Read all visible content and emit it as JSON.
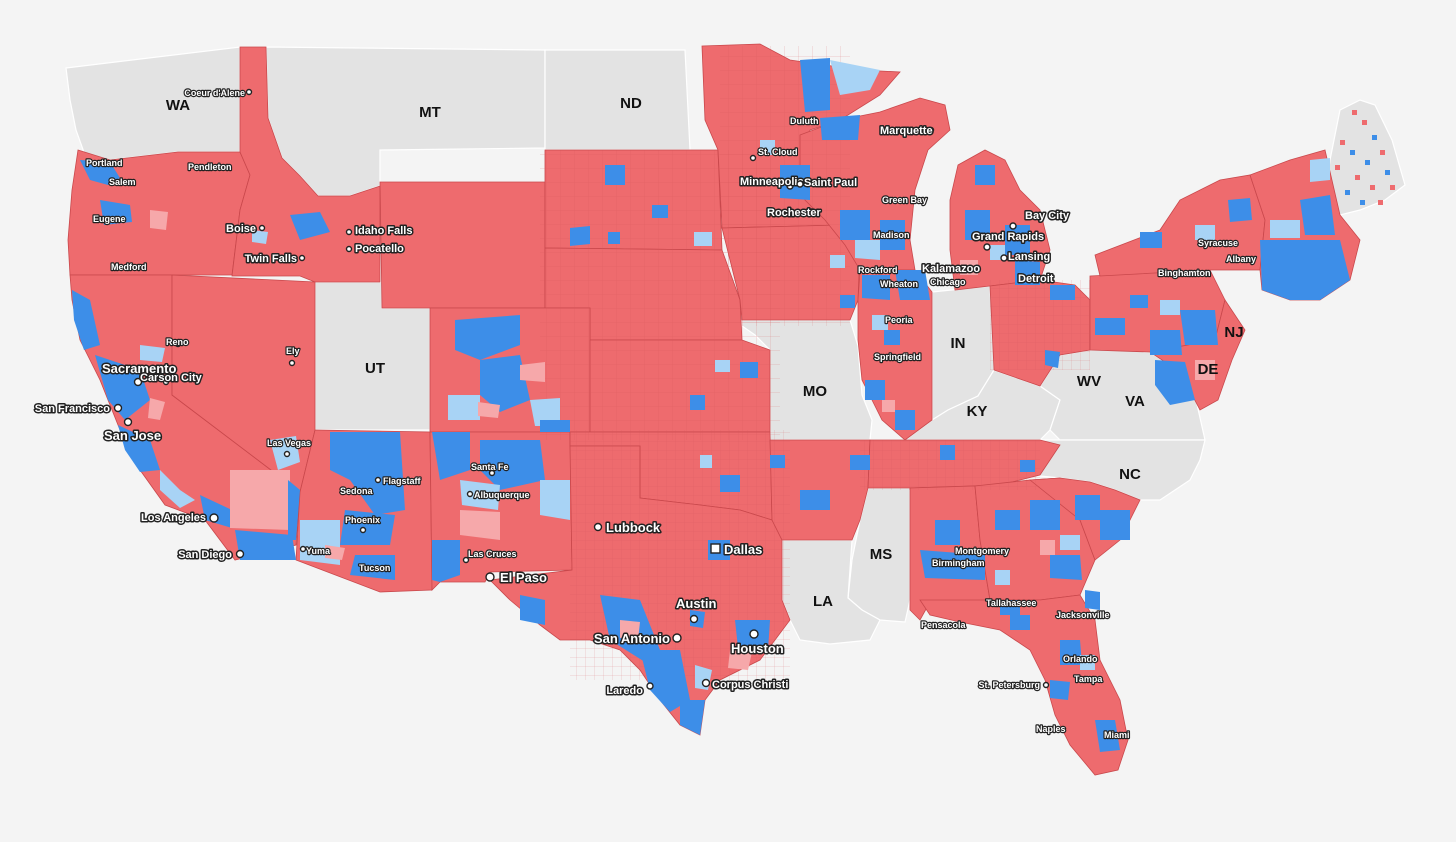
{
  "colors": {
    "strong_red": "#ee6b6e",
    "light_red": "#f6a8aa",
    "strong_blue": "#3d8ee8",
    "light_blue": "#a8d3f5",
    "no_data": "#e3e3e3",
    "background": "#f4f4f4"
  },
  "state_labels": {
    "WA": "WA",
    "MT": "MT",
    "ND": "ND",
    "UT": "UT",
    "MO": "MO",
    "IN": "IN",
    "KY": "KY",
    "WV": "WV",
    "VA": "VA",
    "NC": "NC",
    "MS": "MS",
    "LA": "LA",
    "NJ": "NJ",
    "DE": "DE"
  },
  "cities": {
    "coeur_d_alene": "Coeur d'Alene",
    "boise": "Boise",
    "twin_falls": "Twin Falls",
    "idaho_falls": "Idaho Falls",
    "pocatello": "Pocatello",
    "reno": "Reno",
    "sacramento": "Sacramento",
    "carson_city": "Carson City",
    "ely": "Ely",
    "san_francisco": "San Francisco",
    "san_jose": "San Jose",
    "las_vegas": "Las Vegas",
    "los_angeles": "Los Angeles",
    "san_diego": "San Diego",
    "flagstaff": "Flagstaff",
    "sedona": "Sedona",
    "phoenix": "Phoenix",
    "tucson": "Tucson",
    "yuma": "Yuma",
    "santa_fe": "Santa Fe",
    "albuquerque": "Albuquerque",
    "las_cruces": "Las Cruces",
    "el_paso": "El Paso",
    "lubbock": "Lubbock",
    "dallas": "Dallas",
    "austin": "Austin",
    "san_antonio": "San Antonio",
    "houston": "Houston",
    "laredo": "Laredo",
    "corpus_christi": "Corpus Christi",
    "duluth": "Duluth",
    "st_cloud": "St. Cloud",
    "minneapolis": "Minneapolis",
    "saint_paul": "Saint Paul",
    "rochester": "Rochester",
    "marquette": "Marquette",
    "green_bay": "Green Bay",
    "madison": "Madison",
    "rockford": "Rockford",
    "wheaton": "Wheaton",
    "chicago": "Chicago",
    "peoria": "Peoria",
    "springfield": "Springfield",
    "grand_rapids": "Grand Rapids",
    "bay_city": "Bay City",
    "lansing": "Lansing",
    "kalamazoo": "Kalamazoo",
    "detroit": "Detroit",
    "birmingham": "Birmingham",
    "montgomery": "Montgomery",
    "tallahassee": "Tallahassee",
    "pensacola": "Pensacola",
    "jacksonville": "Jacksonville",
    "orlando": "Orlando",
    "tampa": "Tampa",
    "st_petersburg": "St. Petersburg",
    "naples": "Naples",
    "miami": "Miami",
    "syracuse": "Syracuse",
    "binghamton": "Binghamton",
    "albany": "Albany",
    "medford": "Medford",
    "eugene": "Eugene",
    "portland": "Portland",
    "salem": "Salem",
    "pendleton": "Pendleton"
  }
}
